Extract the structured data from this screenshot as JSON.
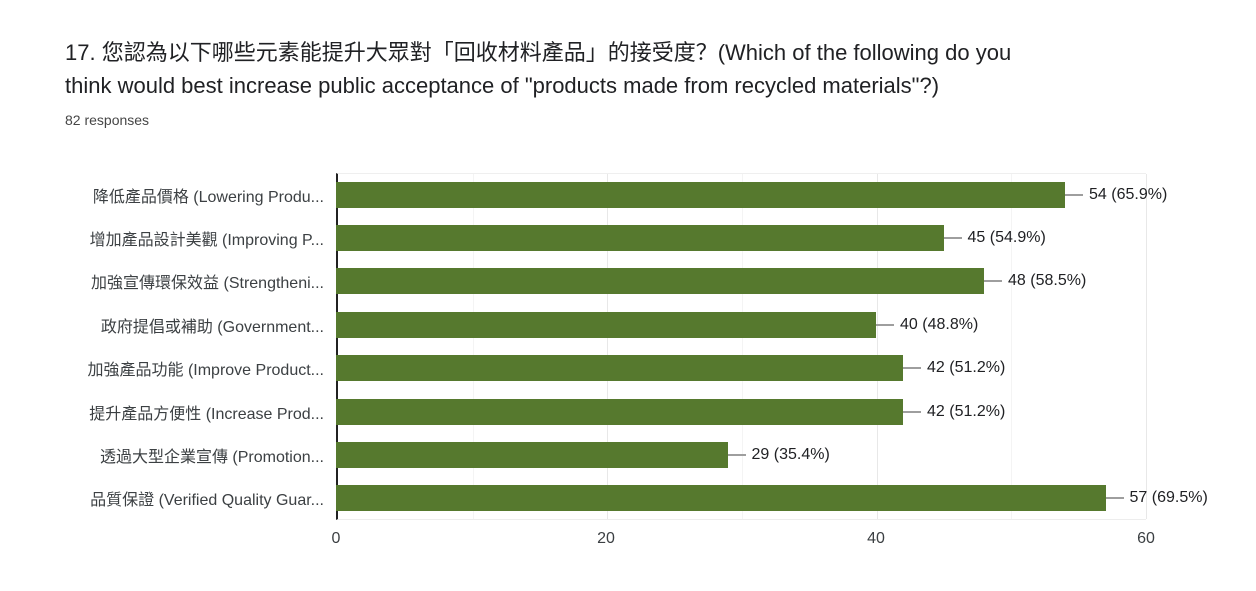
{
  "header": {
    "title_line1": "17. 您認為以下哪些元素能提升大眾對「回收材料產品」的接受度？(Which of the following do you",
    "title_line2": "think would best increase public acceptance of \"products made from recycled materials\"?)",
    "responses": "82 responses"
  },
  "chart_data": {
    "type": "bar",
    "orientation": "horizontal",
    "title": "",
    "xlabel": "",
    "ylabel": "",
    "categories": [
      "降低產品價格 (Lowering Produ...",
      "增加產品設計美觀 (Improving P...",
      "加強宣傳環保效益 (Strengtheni...",
      "政府提倡或補助 (Government...",
      "加強產品功能 (Improve Product...",
      "提升產品方便性 (Increase Prod...",
      "透過大型企業宣傳 (Promotion...",
      "品質保證 (Verified Quality Guar..."
    ],
    "values": [
      54,
      45,
      48,
      40,
      42,
      42,
      29,
      57
    ],
    "value_labels": [
      "54 (65.9%)",
      "45 (54.9%)",
      "48 (58.5%)",
      "40 (48.8%)",
      "42 (51.2%)",
      "42 (51.2%)",
      "29 (35.4%)",
      "57 (69.5%)"
    ],
    "total_responses": 82,
    "xlim": [
      0,
      60
    ],
    "xticks": [
      0,
      20,
      40,
      60
    ],
    "minor_gridlines": [
      10,
      30,
      50
    ],
    "grid": true,
    "legend": false,
    "bar_color": "#56792e",
    "major_gridline_color": "#e8e8e8",
    "minor_gridline_color": "#f4f4f4",
    "axis_line_color": "#212121",
    "leader_line_color": "#9e9e9e"
  }
}
